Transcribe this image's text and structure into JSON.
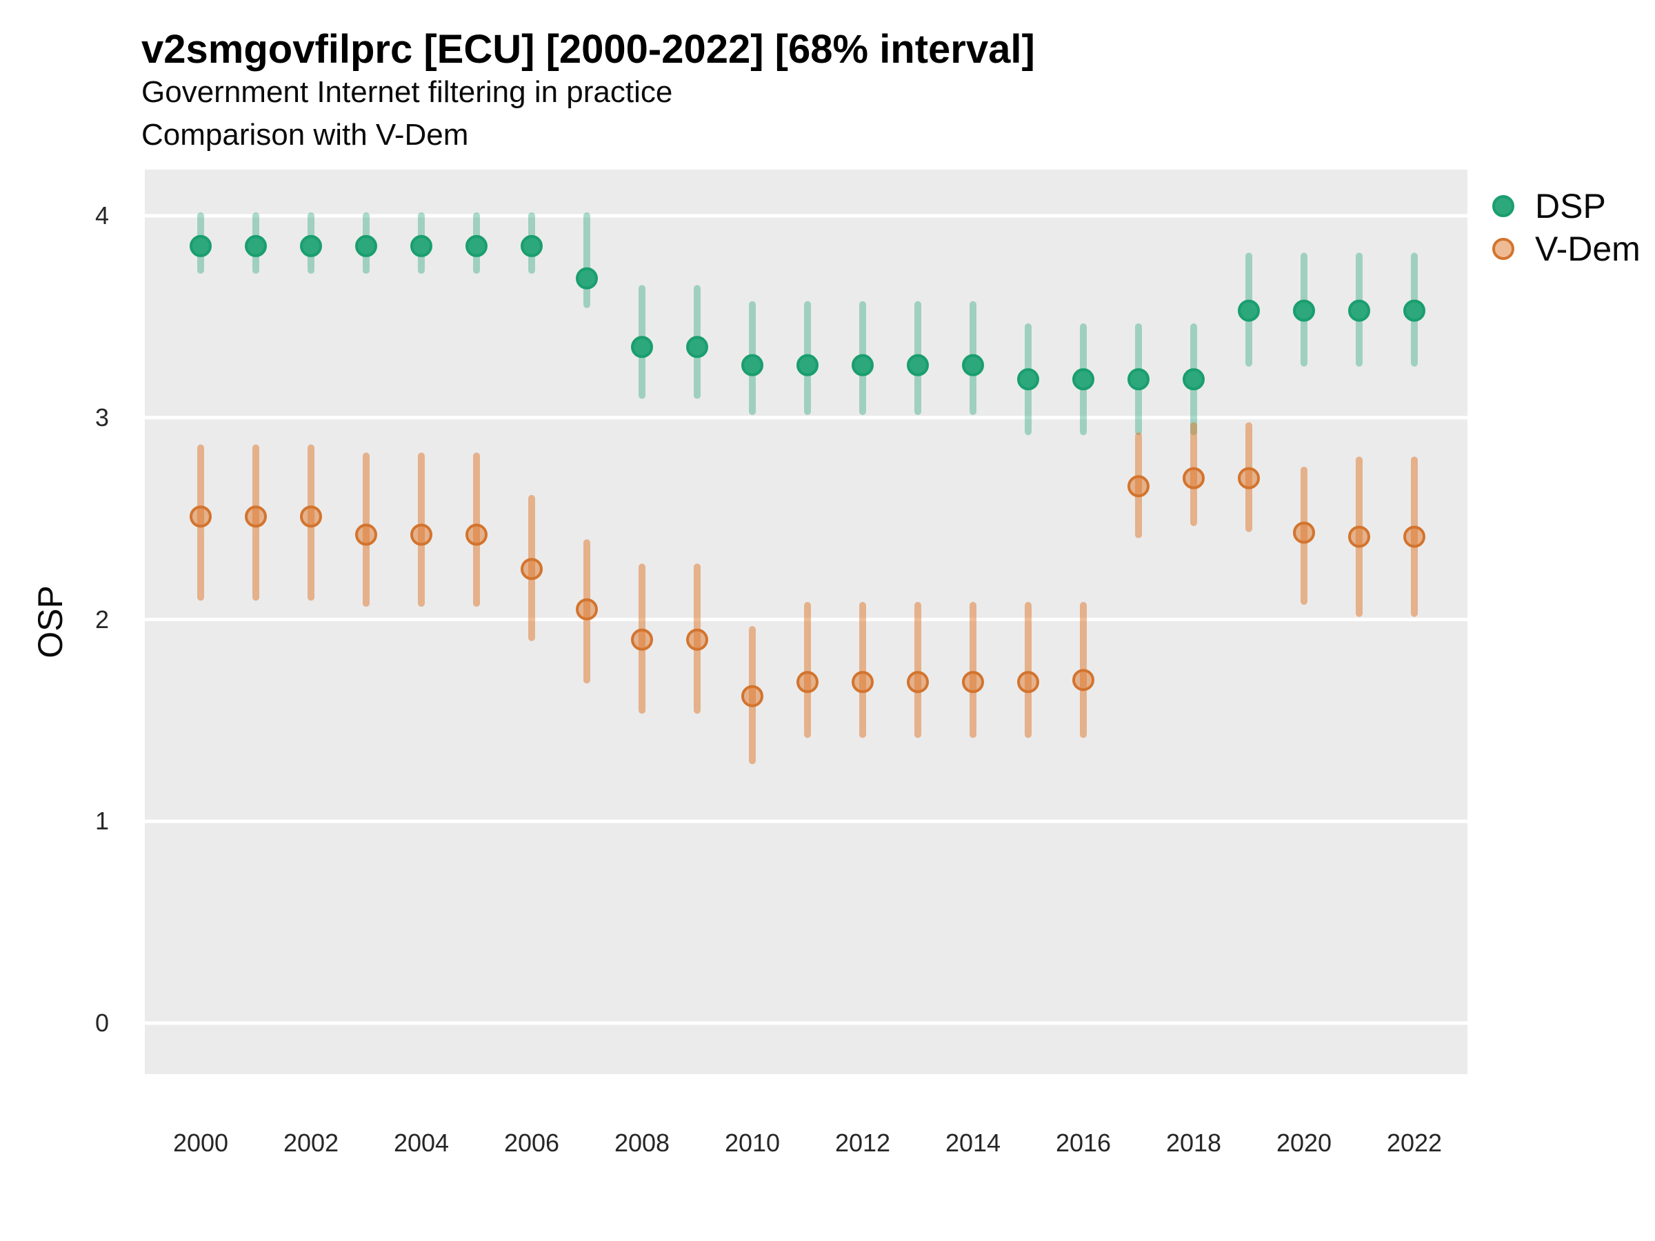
{
  "header": {
    "title": "v2smgovfilprc [ECU] [2000-2022] [68% interval]",
    "subtitle1": "Government Internet filtering in practice",
    "subtitle2": "Comparison with V-Dem"
  },
  "y_axis": {
    "label": "OSP",
    "ticks": [
      4,
      3,
      2,
      1,
      0
    ]
  },
  "x_axis": {
    "ticks": [
      2000,
      2002,
      2004,
      2006,
      2008,
      2010,
      2012,
      2014,
      2016,
      2018,
      2020,
      2022
    ]
  },
  "legend": {
    "items": [
      {
        "label": "DSP",
        "color": "#2ca87c",
        "stroke": "#1a9e6f",
        "fill_opacity": 1
      },
      {
        "label": "V-Dem",
        "color": "#de782c",
        "stroke": "#d3742e",
        "fill_opacity": 0.5
      }
    ]
  },
  "chart_data": {
    "type": "pointrange",
    "title": "v2smgovfilprc [ECU] [2000-2022] [68% interval]",
    "subtitle": "Government Internet filtering in practice — Comparison with V-Dem",
    "xlabel": "",
    "ylabel": "OSP",
    "interval": "68%",
    "ylim": [
      -0.3,
      4.23
    ],
    "grid": "major-horizontal-white-on-gray",
    "legend_position": "right-top",
    "x": [
      2000,
      2001,
      2002,
      2003,
      2004,
      2005,
      2006,
      2007,
      2008,
      2009,
      2010,
      2011,
      2012,
      2013,
      2014,
      2015,
      2016,
      2017,
      2018,
      2019,
      2020,
      2021,
      2022
    ],
    "series": [
      {
        "name": "DSP",
        "color": "#2ca87c",
        "stroke": "#1a9e6f",
        "line_rgba": "rgba(44,168,124,0.40)",
        "values": [
          3.85,
          3.85,
          3.85,
          3.85,
          3.85,
          3.85,
          3.85,
          3.69,
          3.35,
          3.35,
          3.26,
          3.26,
          3.26,
          3.26,
          3.26,
          3.19,
          3.19,
          3.19,
          3.19,
          3.53,
          3.53,
          3.53,
          3.53
        ],
        "lower": [
          3.73,
          3.73,
          3.73,
          3.73,
          3.73,
          3.73,
          3.73,
          3.56,
          3.11,
          3.11,
          3.03,
          3.03,
          3.03,
          3.03,
          3.03,
          2.93,
          2.93,
          2.93,
          2.93,
          3.27,
          3.27,
          3.27,
          3.27
        ],
        "upper": [
          4.0,
          4.0,
          4.0,
          4.0,
          4.0,
          4.0,
          4.0,
          4.0,
          3.64,
          3.64,
          3.56,
          3.56,
          3.56,
          3.56,
          3.56,
          3.45,
          3.45,
          3.45,
          3.45,
          3.8,
          3.8,
          3.8,
          3.8
        ]
      },
      {
        "name": "V-Dem",
        "color": "#de782c",
        "stroke": "#d3742e",
        "line_rgba": "rgba(222,120,44,0.50)",
        "fill_rgba": "rgba(222,120,44,0.50)",
        "values": [
          2.51,
          2.51,
          2.51,
          2.42,
          2.42,
          2.42,
          2.25,
          2.05,
          1.9,
          1.9,
          1.62,
          1.69,
          1.69,
          1.69,
          1.69,
          1.69,
          1.7,
          2.66,
          2.7,
          2.7,
          2.43,
          2.41,
          2.41
        ],
        "lower": [
          2.11,
          2.11,
          2.11,
          2.08,
          2.08,
          2.08,
          1.91,
          1.7,
          1.55,
          1.55,
          1.3,
          1.43,
          1.43,
          1.43,
          1.43,
          1.43,
          1.43,
          2.42,
          2.48,
          2.45,
          2.09,
          2.03,
          2.03
        ],
        "upper": [
          2.85,
          2.85,
          2.85,
          2.81,
          2.81,
          2.81,
          2.6,
          2.38,
          2.26,
          2.26,
          1.95,
          2.07,
          2.07,
          2.07,
          2.07,
          2.07,
          2.07,
          2.91,
          2.96,
          2.96,
          2.74,
          2.79,
          2.79
        ]
      }
    ]
  },
  "style": {
    "panel_bg": "#ebebeb",
    "gridline_color": "#ffffff",
    "gridline_width": 5,
    "range_line_width": 10,
    "point_radius": 14,
    "point_stroke_width": 4
  }
}
